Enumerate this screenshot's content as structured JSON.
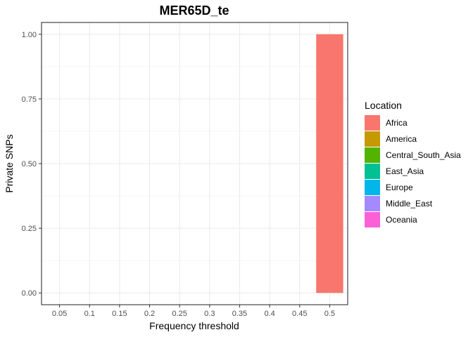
{
  "chart_data": {
    "type": "bar",
    "title": "MER65D_te",
    "xlabel": "Frequency threshold",
    "ylabel": "Private SNPs",
    "categories": [
      "0.05",
      "0.1",
      "0.15",
      "0.2",
      "0.25",
      "0.3",
      "0.35",
      "0.4",
      "0.45",
      "0.5"
    ],
    "series": [
      {
        "name": "Africa",
        "color": "#F8766D",
        "values": [
          0,
          0,
          0,
          0,
          0,
          0,
          0,
          0,
          0,
          1.0
        ]
      },
      {
        "name": "America",
        "color": "#C49A00",
        "values": [
          0,
          0,
          0,
          0,
          0,
          0,
          0,
          0,
          0,
          0
        ]
      },
      {
        "name": "Central_South_Asia",
        "color": "#53B400",
        "values": [
          0,
          0,
          0,
          0,
          0,
          0,
          0,
          0,
          0,
          0
        ]
      },
      {
        "name": "East_Asia",
        "color": "#00C094",
        "values": [
          0,
          0,
          0,
          0,
          0,
          0,
          0,
          0,
          0,
          0
        ]
      },
      {
        "name": "Europe",
        "color": "#00B6EB",
        "values": [
          0,
          0,
          0,
          0,
          0,
          0,
          0,
          0,
          0,
          0
        ]
      },
      {
        "name": "Middle_East",
        "color": "#A58AFF",
        "values": [
          0,
          0,
          0,
          0,
          0,
          0,
          0,
          0,
          0,
          0
        ]
      },
      {
        "name": "Oceania",
        "color": "#FB61D7",
        "values": [
          0,
          0,
          0,
          0,
          0,
          0,
          0,
          0,
          0,
          0
        ]
      }
    ],
    "yticks": [
      "0.00",
      "0.25",
      "0.50",
      "0.75",
      "1.00"
    ],
    "ylim": [
      -0.0455,
      1.0455
    ],
    "legend_title": "Location",
    "legend_position": "right",
    "grid": true
  }
}
